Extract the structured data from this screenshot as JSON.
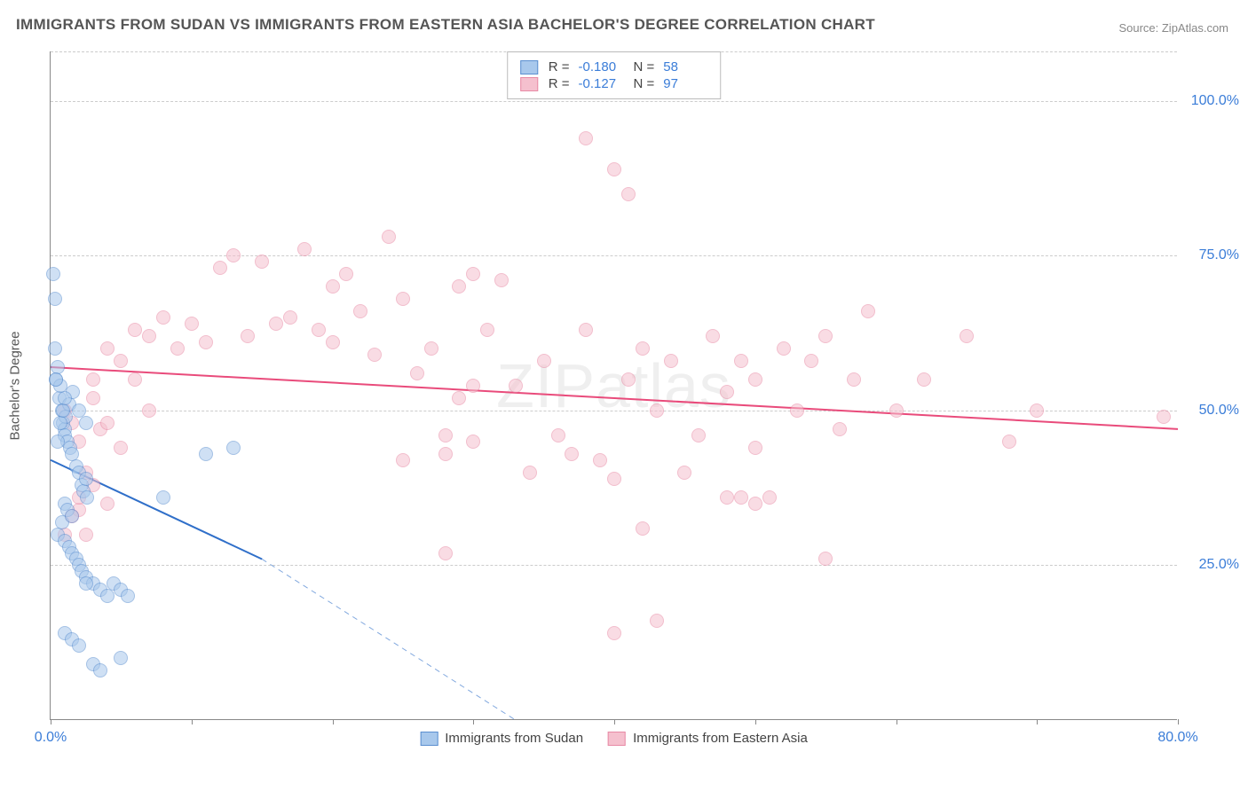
{
  "title": "IMMIGRANTS FROM SUDAN VS IMMIGRANTS FROM EASTERN ASIA BACHELOR'S DEGREE CORRELATION CHART",
  "source": "Source: ZipAtlas.com",
  "watermark": "ZIPatlas",
  "chart": {
    "type": "scatter",
    "y_axis_label": "Bachelor's Degree",
    "xlim": [
      0,
      80
    ],
    "ylim": [
      0,
      108
    ],
    "x_ticks": [
      0,
      10,
      20,
      30,
      40,
      50,
      60,
      70,
      80
    ],
    "x_tick_labels": {
      "0": "0.0%",
      "80": "80.0%"
    },
    "y_gridlines": [
      25,
      50,
      75,
      100,
      108
    ],
    "y_tick_labels": {
      "25": "25.0%",
      "50": "50.0%",
      "75": "75.0%",
      "100": "100.0%"
    },
    "background_color": "#ffffff",
    "grid_color": "#cccccc",
    "axis_color": "#888888",
    "tick_label_color": "#3b7dd8",
    "point_radius": 8,
    "point_opacity": 0.55,
    "series": [
      {
        "name": "Immigrants from Sudan",
        "color_fill": "#a8c8ec",
        "color_stroke": "#5b8fd0",
        "R": "-0.180",
        "N": "58",
        "trend": {
          "x1": 0,
          "y1": 42,
          "x2": 15,
          "y2": 26,
          "x2_dash": 33,
          "y2_dash": 0,
          "color": "#2f6fc9",
          "width": 2
        },
        "points": [
          [
            0.2,
            72
          ],
          [
            0.3,
            68
          ],
          [
            0.4,
            55
          ],
          [
            0.5,
            57
          ],
          [
            0.6,
            52
          ],
          [
            0.7,
            54
          ],
          [
            0.8,
            50
          ],
          [
            0.9,
            48
          ],
          [
            1.0,
            47
          ],
          [
            1.0,
            46
          ],
          [
            1.1,
            49
          ],
          [
            1.2,
            45
          ],
          [
            1.3,
            51
          ],
          [
            1.4,
            44
          ],
          [
            1.5,
            43
          ],
          [
            1.6,
            53
          ],
          [
            1.8,
            41
          ],
          [
            2.0,
            40
          ],
          [
            2.2,
            38
          ],
          [
            2.3,
            37
          ],
          [
            2.5,
            39
          ],
          [
            2.6,
            36
          ],
          [
            0.5,
            30
          ],
          [
            0.8,
            32
          ],
          [
            1.0,
            35
          ],
          [
            1.2,
            34
          ],
          [
            1.5,
            33
          ],
          [
            1.0,
            29
          ],
          [
            1.3,
            28
          ],
          [
            1.5,
            27
          ],
          [
            1.8,
            26
          ],
          [
            2.0,
            25
          ],
          [
            2.2,
            24
          ],
          [
            2.5,
            23
          ],
          [
            3.0,
            22
          ],
          [
            3.5,
            21
          ],
          [
            4.0,
            20
          ],
          [
            4.5,
            22
          ],
          [
            5.0,
            21
          ],
          [
            5.5,
            20
          ],
          [
            1.0,
            14
          ],
          [
            1.5,
            13
          ],
          [
            2.0,
            12
          ],
          [
            2.5,
            22
          ],
          [
            3.0,
            9
          ],
          [
            3.5,
            8
          ],
          [
            0.5,
            45
          ],
          [
            0.7,
            48
          ],
          [
            0.9,
            50
          ],
          [
            1.0,
            52
          ],
          [
            8.0,
            36
          ],
          [
            11.0,
            43
          ],
          [
            13.0,
            44
          ],
          [
            0.3,
            60
          ],
          [
            0.4,
            55
          ],
          [
            2.0,
            50
          ],
          [
            2.5,
            48
          ],
          [
            5.0,
            10
          ]
        ]
      },
      {
        "name": "Immigrants from Eastern Asia",
        "color_fill": "#f5c0ce",
        "color_stroke": "#e88aa5",
        "R": "-0.127",
        "N": "97",
        "trend": {
          "x1": 0,
          "y1": 57,
          "x2": 80,
          "y2": 47,
          "color": "#e94b7b",
          "width": 2
        },
        "points": [
          [
            1,
            50
          ],
          [
            1.5,
            48
          ],
          [
            2,
            45
          ],
          [
            2,
            34
          ],
          [
            2.5,
            30
          ],
          [
            3,
            55
          ],
          [
            3.5,
            47
          ],
          [
            4,
            60
          ],
          [
            5,
            58
          ],
          [
            6,
            63
          ],
          [
            7,
            62
          ],
          [
            8,
            65
          ],
          [
            9,
            60
          ],
          [
            10,
            64
          ],
          [
            11,
            61
          ],
          [
            12,
            73
          ],
          [
            13,
            75
          ],
          [
            14,
            62
          ],
          [
            15,
            74
          ],
          [
            16,
            64
          ],
          [
            17,
            65
          ],
          [
            18,
            76
          ],
          [
            19,
            63
          ],
          [
            20,
            70
          ],
          [
            20,
            61
          ],
          [
            21,
            72
          ],
          [
            22,
            66
          ],
          [
            23,
            59
          ],
          [
            24,
            78
          ],
          [
            25,
            68
          ],
          [
            25,
            42
          ],
          [
            26,
            56
          ],
          [
            27,
            60
          ],
          [
            28,
            43
          ],
          [
            28,
            27
          ],
          [
            29,
            70
          ],
          [
            30,
            72
          ],
          [
            30,
            45
          ],
          [
            31,
            63
          ],
          [
            32,
            71
          ],
          [
            33,
            54
          ],
          [
            34,
            40
          ],
          [
            35,
            58
          ],
          [
            36,
            46
          ],
          [
            37,
            43
          ],
          [
            38,
            94
          ],
          [
            38,
            63
          ],
          [
            39,
            42
          ],
          [
            40,
            89
          ],
          [
            40,
            39
          ],
          [
            40,
            14
          ],
          [
            41,
            85
          ],
          [
            41,
            55
          ],
          [
            42,
            60
          ],
          [
            42,
            31
          ],
          [
            43,
            50
          ],
          [
            43,
            16
          ],
          [
            44,
            58
          ],
          [
            45,
            40
          ],
          [
            46,
            46
          ],
          [
            47,
            62
          ],
          [
            48,
            53
          ],
          [
            49,
            58
          ],
          [
            50,
            55
          ],
          [
            50,
            44
          ],
          [
            51,
            36
          ],
          [
            52,
            60
          ],
          [
            53,
            50
          ],
          [
            54,
            58
          ],
          [
            55,
            62
          ],
          [
            56,
            47
          ],
          [
            57,
            55
          ],
          [
            58,
            66
          ],
          [
            60,
            50
          ],
          [
            62,
            55
          ],
          [
            65,
            62
          ],
          [
            68,
            45
          ],
          [
            70,
            50
          ],
          [
            79,
            49
          ],
          [
            3,
            52
          ],
          [
            4,
            48
          ],
          [
            5,
            44
          ],
          [
            6,
            55
          ],
          [
            7,
            50
          ],
          [
            1,
            30
          ],
          [
            1.5,
            33
          ],
          [
            2,
            36
          ],
          [
            2.5,
            40
          ],
          [
            3,
            38
          ],
          [
            4,
            35
          ],
          [
            55,
            26
          ],
          [
            50,
            35
          ],
          [
            48,
            36
          ],
          [
            49,
            36
          ],
          [
            28,
            46
          ],
          [
            29,
            52
          ],
          [
            30,
            54
          ]
        ]
      }
    ]
  },
  "legend_top": {
    "r_label": "R =",
    "n_label": "N ="
  },
  "legend_bottom": {
    "items": [
      "Immigrants from Sudan",
      "Immigrants from Eastern Asia"
    ]
  }
}
